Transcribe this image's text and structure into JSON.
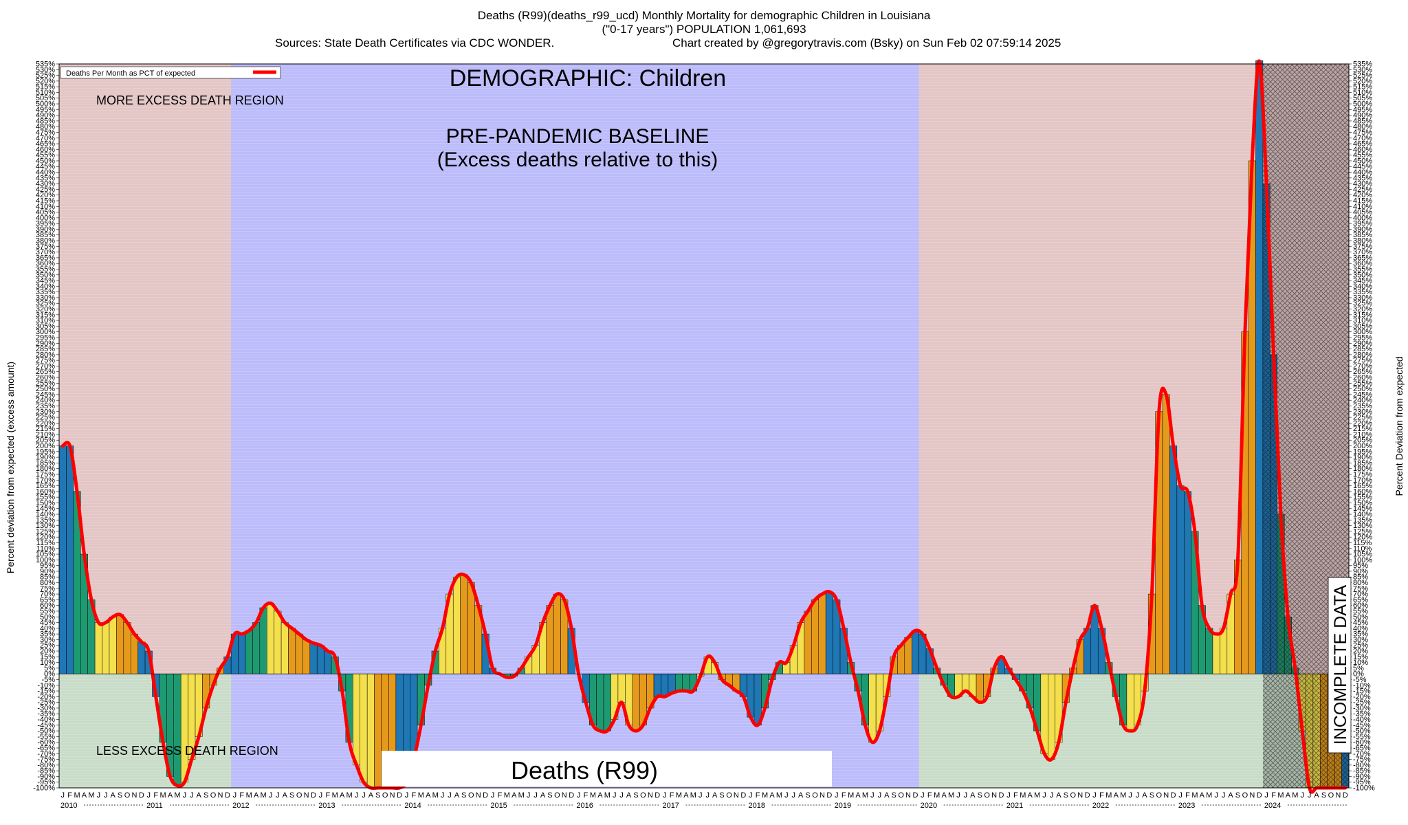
{
  "header": {
    "title_line1": "Deaths (R99)(deaths_r99_ucd) Monthly Mortality for demographic Children in Louisiana",
    "title_line2": "(\"0-17 years\") POPULATION 1,061,693",
    "sources": "Sources: State Death Certificates via CDC WONDER.",
    "credit": "Chart created by @gregorytravis.com (Bsky) on Sun Feb 02 07:59:14 2025"
  },
  "legend": {
    "label": "Deaths Per Month as PCT of expected",
    "color": "#ff0000"
  },
  "annotations": {
    "demographic": "DEMOGRAPHIC: Children",
    "baseline_line1": "PRE-PANDEMIC BASELINE",
    "baseline_line2": "(Excess deaths relative to this)",
    "more_region": "MORE EXCESS DEATH REGION",
    "less_region": "LESS EXCESS DEATH REGION",
    "incomplete": "INCOMPLETE DATA",
    "cause_box": "Deaths (R99)"
  },
  "axes": {
    "ylabel_left": "Percent deviation from expected (excess amount)",
    "ylabel_right": "Percent Deviation from expected"
  },
  "colors": {
    "baseline_region": "#bcbcfb",
    "excess_region": "#e4c6c6",
    "less_region": "#c9dcc9",
    "incomplete_hatch": "#555555",
    "bar_winter": "#1f77b4",
    "bar_spring": "#1e9a72",
    "bar_summer": "#f4e04d",
    "bar_fall": "#e69a1c",
    "line": "#ff0000"
  },
  "chart_data": {
    "type": "bar",
    "title": "Deaths (R99)(deaths_r99_ucd) Monthly Mortality for demographic Children in Louisiana",
    "ylim": [
      -100,
      535
    ],
    "ytick_step": 5,
    "ytick_suffix": "%",
    "grid": true,
    "legend_position": "top-left",
    "month_letters": [
      "J",
      "F",
      "M",
      "A",
      "M",
      "J",
      "J",
      "A",
      "S",
      "O",
      "N",
      "D"
    ],
    "years": [
      "2010",
      "2011",
      "2012",
      "2013",
      "2014",
      "2015",
      "2016",
      "2017",
      "2018",
      "2019",
      "2020",
      "2021",
      "2022",
      "2023",
      "2024"
    ],
    "x_start": "2010-01",
    "x_end": "2024-12",
    "baseline_period": [
      "2012-01",
      "2019-12"
    ],
    "incomplete_period": [
      "2024-01",
      "2024-12"
    ],
    "series": [
      {
        "name": "Deaths Per Month as PCT of expected",
        "values": [
          200,
          200,
          160,
          105,
          65,
          45,
          45,
          50,
          52,
          45,
          35,
          28,
          20,
          -20,
          -60,
          -90,
          -98,
          -95,
          -75,
          -55,
          -30,
          -10,
          5,
          15,
          35,
          35,
          38,
          45,
          58,
          62,
          55,
          45,
          40,
          35,
          30,
          27,
          25,
          20,
          15,
          -15,
          -60,
          -80,
          -95,
          -100,
          -100,
          -100,
          -100,
          -100,
          -95,
          -75,
          -45,
          -10,
          20,
          40,
          70,
          85,
          87,
          80,
          60,
          35,
          5,
          0,
          -3,
          -2,
          5,
          15,
          25,
          45,
          60,
          70,
          65,
          40,
          0,
          -25,
          -45,
          -50,
          -50,
          -40,
          -25,
          -45,
          -50,
          -45,
          -30,
          -20,
          -20,
          -17,
          -15,
          -15,
          -15,
          -2,
          15,
          10,
          -5,
          -10,
          -15,
          -20,
          -38,
          -45,
          -30,
          -5,
          10,
          10,
          25,
          45,
          55,
          65,
          70,
          72,
          65,
          40,
          10,
          -15,
          -45,
          -60,
          -50,
          -20,
          15,
          25,
          32,
          38,
          35,
          22,
          5,
          -10,
          -20,
          -20,
          -15,
          -20,
          -25,
          -20,
          5,
          15,
          5,
          -5,
          -15,
          -30,
          -50,
          -70,
          -75,
          -60,
          -25,
          5,
          30,
          40,
          60,
          40,
          10,
          -20,
          -45,
          -50,
          -45,
          -15,
          70,
          230,
          245,
          200,
          165,
          160,
          125,
          60,
          40,
          35,
          40,
          70,
          100,
          300,
          450,
          538,
          430,
          280,
          140,
          50,
          5,
          -50,
          -100,
          -100,
          -100,
          -100,
          -100,
          -100
        ]
      }
    ]
  }
}
